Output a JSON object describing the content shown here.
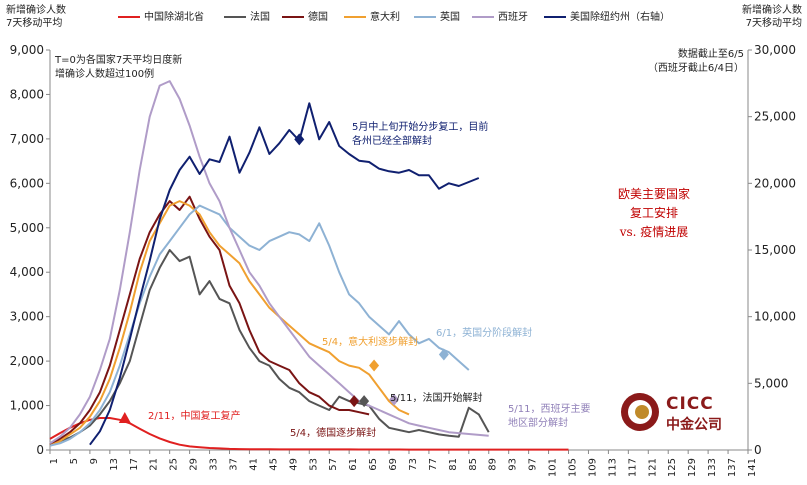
{
  "headers": {
    "left_title_1": "新增确诊人数",
    "left_title_2": "7天移动平均",
    "right_title_1": "新增确诊人数",
    "right_title_2": "7天移动平均"
  },
  "notes": {
    "definition_line1": "T=0为各国家7天平均日度新",
    "definition_line2": "增确诊人数超过100例",
    "cutoff_line1": "数据截止至6/5",
    "cutoff_line2": "（西班牙截止6/4日）"
  },
  "title": {
    "line1": "欧美主要国家",
    "line2": "复工安排",
    "line3": "vs. 疫情进展"
  },
  "logo": {
    "name": "CICC",
    "sub": "中金公司"
  },
  "colors": {
    "hubei_excl": "#e02020",
    "france": "#555555",
    "germany": "#7a1414",
    "italy": "#f0a030",
    "uk": "#8eb2d4",
    "spain": "#b09cc8",
    "us_excl_ny": "#102070"
  },
  "chart_data": {
    "type": "line",
    "x_ticks": [
      1,
      5,
      9,
      13,
      17,
      21,
      25,
      29,
      33,
      37,
      41,
      45,
      49,
      53,
      57,
      61,
      65,
      69,
      73,
      77,
      81,
      85,
      89,
      93,
      97,
      101,
      105,
      109,
      113,
      117,
      121,
      125,
      129,
      133,
      137,
      141
    ],
    "xlim": [
      1,
      141
    ],
    "ylim_left": [
      0,
      9000
    ],
    "ylim_right": [
      0,
      30000
    ],
    "yticks_left": [
      "0",
      "1,000",
      "2,000",
      "3,000",
      "4,000",
      "5,000",
      "6,000",
      "7,000",
      "8,000",
      "9,000"
    ],
    "yticks_right": [
      "0",
      "5,000",
      "10,000",
      "15,000",
      "20,000",
      "25,000",
      "30,000"
    ],
    "grid": false,
    "legend_position": "top",
    "series": [
      {
        "name": "中国除湖北省",
        "axis": "left",
        "color": "#e02020",
        "x": [
          1,
          3,
          5,
          7,
          9,
          11,
          13,
          15,
          17,
          19,
          21,
          23,
          25,
          27,
          29,
          31,
          33,
          35,
          37,
          39,
          41,
          43,
          45,
          47,
          49,
          51,
          53,
          55,
          57,
          59,
          61,
          63,
          65,
          67,
          69,
          71,
          73,
          75,
          77,
          79,
          81,
          83,
          85,
          87,
          89,
          91,
          93,
          95,
          97,
          99,
          101,
          103,
          105
        ],
        "y": [
          250,
          380,
          500,
          600,
          680,
          720,
          720,
          680,
          600,
          480,
          360,
          260,
          180,
          120,
          80,
          60,
          45,
          35,
          25,
          20,
          18,
          16,
          15,
          14,
          14,
          14,
          14,
          14,
          14,
          13,
          13,
          12,
          12,
          12,
          11,
          11,
          10,
          10,
          10,
          10,
          10,
          10,
          10,
          10,
          9,
          9,
          9,
          9,
          8,
          8,
          8,
          8,
          8
        ]
      },
      {
        "name": "法国",
        "axis": "left",
        "color": "#555555",
        "x": [
          1,
          3,
          5,
          7,
          9,
          11,
          13,
          15,
          17,
          19,
          21,
          23,
          25,
          27,
          29,
          31,
          33,
          35,
          37,
          39,
          41,
          43,
          45,
          47,
          49,
          51,
          53,
          55,
          57,
          59,
          61,
          63,
          65,
          67,
          69,
          71,
          73,
          75,
          77,
          79,
          81,
          83,
          85,
          87,
          89
        ],
        "y": [
          100,
          200,
          280,
          400,
          550,
          800,
          1100,
          1500,
          2000,
          2800,
          3600,
          4100,
          4500,
          4250,
          4350,
          3500,
          3800,
          3400,
          3300,
          2700,
          2300,
          2000,
          1900,
          1600,
          1400,
          1300,
          1100,
          1000,
          900,
          1200,
          1100,
          1050,
          1000,
          700,
          500,
          450,
          400,
          450,
          400,
          350,
          320,
          300,
          950,
          800,
          400
        ]
      },
      {
        "name": "德国",
        "axis": "left",
        "color": "#7a1414",
        "x": [
          1,
          3,
          5,
          7,
          9,
          11,
          13,
          15,
          17,
          19,
          21,
          23,
          25,
          27,
          29,
          31,
          33,
          35,
          37,
          39,
          41,
          43,
          45,
          47,
          49,
          51,
          53,
          55,
          57,
          59,
          61,
          63,
          65
        ],
        "y": [
          120,
          250,
          400,
          600,
          900,
          1300,
          1900,
          2700,
          3500,
          4300,
          4900,
          5300,
          5600,
          5400,
          5700,
          5200,
          4800,
          4500,
          3700,
          3300,
          2700,
          2200,
          2000,
          1900,
          1800,
          1500,
          1300,
          1200,
          1000,
          900,
          900,
          850,
          800
        ]
      },
      {
        "name": "意大利",
        "axis": "left",
        "color": "#f0a030",
        "x": [
          1,
          3,
          5,
          7,
          9,
          11,
          13,
          15,
          17,
          19,
          21,
          23,
          25,
          27,
          29,
          31,
          33,
          35,
          37,
          39,
          41,
          43,
          45,
          47,
          49,
          51,
          53,
          55,
          57,
          59,
          61,
          63,
          65,
          67,
          69,
          71,
          73
        ],
        "y": [
          100,
          200,
          350,
          500,
          750,
          1100,
          1600,
          2300,
          3100,
          4000,
          4700,
          5100,
          5500,
          5600,
          5500,
          5300,
          4900,
          4600,
          4400,
          4200,
          3800,
          3500,
          3200,
          3000,
          2800,
          2600,
          2400,
          2300,
          2200,
          2000,
          1900,
          1850,
          1700,
          1400,
          1100,
          900,
          800
        ]
      },
      {
        "name": "英国",
        "axis": "left",
        "color": "#8eb2d4",
        "x": [
          1,
          3,
          5,
          7,
          9,
          11,
          13,
          15,
          17,
          19,
          21,
          23,
          25,
          27,
          29,
          31,
          33,
          35,
          37,
          39,
          41,
          43,
          45,
          47,
          49,
          51,
          53,
          55,
          57,
          59,
          61,
          63,
          65,
          67,
          69,
          71,
          73,
          75,
          77,
          79,
          81,
          83,
          85
        ],
        "y": [
          100,
          150,
          250,
          400,
          600,
          900,
          1300,
          1900,
          2600,
          3300,
          3900,
          4400,
          4700,
          5000,
          5300,
          5500,
          5400,
          5300,
          5000,
          4800,
          4600,
          4500,
          4700,
          4800,
          4900,
          4850,
          4700,
          5100,
          4600,
          4000,
          3500,
          3300,
          3000,
          2800,
          2600,
          2900,
          2600,
          2400,
          2500,
          2300,
          2200,
          2000,
          1800
        ]
      },
      {
        "name": "西班牙",
        "axis": "left",
        "color": "#b09cc8",
        "x": [
          1,
          3,
          5,
          7,
          9,
          11,
          13,
          15,
          17,
          19,
          21,
          23,
          25,
          27,
          29,
          31,
          33,
          35,
          37,
          39,
          41,
          43,
          45,
          47,
          49,
          51,
          53,
          55,
          57,
          59,
          61,
          63,
          65,
          67,
          69,
          71,
          73,
          75,
          77,
          79,
          81,
          83,
          85,
          87,
          89
        ],
        "y": [
          150,
          300,
          500,
          800,
          1200,
          1800,
          2500,
          3600,
          4900,
          6300,
          7500,
          8200,
          8300,
          7900,
          7300,
          6600,
          6000,
          5600,
          5000,
          4500,
          4000,
          3700,
          3300,
          3000,
          2700,
          2400,
          2100,
          1900,
          1700,
          1500,
          1300,
          1100,
          1000,
          900,
          800,
          700,
          600,
          550,
          500,
          450,
          400,
          380,
          360,
          340,
          320
        ]
      },
      {
        "name": "美国除纽约州（右轴）",
        "axis": "right",
        "color": "#102070",
        "x": [
          9,
          11,
          13,
          15,
          17,
          19,
          21,
          23,
          25,
          27,
          29,
          31,
          33,
          35,
          37,
          39,
          41,
          43,
          45,
          47,
          49,
          51,
          53,
          55,
          57,
          59,
          61,
          63,
          65,
          67,
          69,
          71,
          73,
          75,
          77,
          79,
          81,
          83,
          85,
          87
        ],
        "y": [
          400,
          1400,
          3000,
          5400,
          8300,
          11300,
          14200,
          17300,
          19500,
          21000,
          22000,
          20700,
          21800,
          21600,
          23500,
          20800,
          22300,
          24200,
          22200,
          23000,
          24000,
          23200,
          26000,
          23300,
          24600,
          22800,
          22200,
          21700,
          21600,
          21100,
          20900,
          20800,
          21000,
          20600,
          20600,
          19600,
          20000,
          19800,
          20100,
          20400
        ]
      }
    ],
    "annotations": [
      {
        "text": "2/11，中国复工复产",
        "color": "#e02020"
      },
      {
        "text": "5/4，德国逐步解封",
        "color": "#7a1414"
      },
      {
        "text": "5/4，意大利逐步解封",
        "color": "#f0a030"
      },
      {
        "text": "5/11，法国开始解封",
        "color": "#222222"
      },
      {
        "text": "5/11，西班牙主要地区部分解封",
        "color": "#9080b8"
      },
      {
        "text": "6/1，英国分阶段解封",
        "color": "#8eb2d4"
      },
      {
        "text": "5月中上旬开始分步复工，目前各州已经全部解封",
        "color": "#102070"
      }
    ],
    "markers": [
      {
        "series": "中国除湖北省",
        "x": 16,
        "y": 720,
        "shape": "triangle"
      },
      {
        "series": "意大利",
        "x": 66,
        "y": 1900,
        "shape": "diamond"
      },
      {
        "series": "德国",
        "x": 62,
        "y": 1100,
        "shape": "diamond"
      },
      {
        "series": "法国",
        "x": 64,
        "y": 1100,
        "shape": "diamond"
      },
      {
        "series": "西班牙",
        "x": 70,
        "y": 1130,
        "shape": "diamond"
      },
      {
        "series": "英国",
        "x": 80,
        "y": 2150,
        "shape": "diamond"
      },
      {
        "series": "美国除纽约州（右轴）",
        "x": 51,
        "y": 23300,
        "shape": "diamond"
      }
    ]
  }
}
